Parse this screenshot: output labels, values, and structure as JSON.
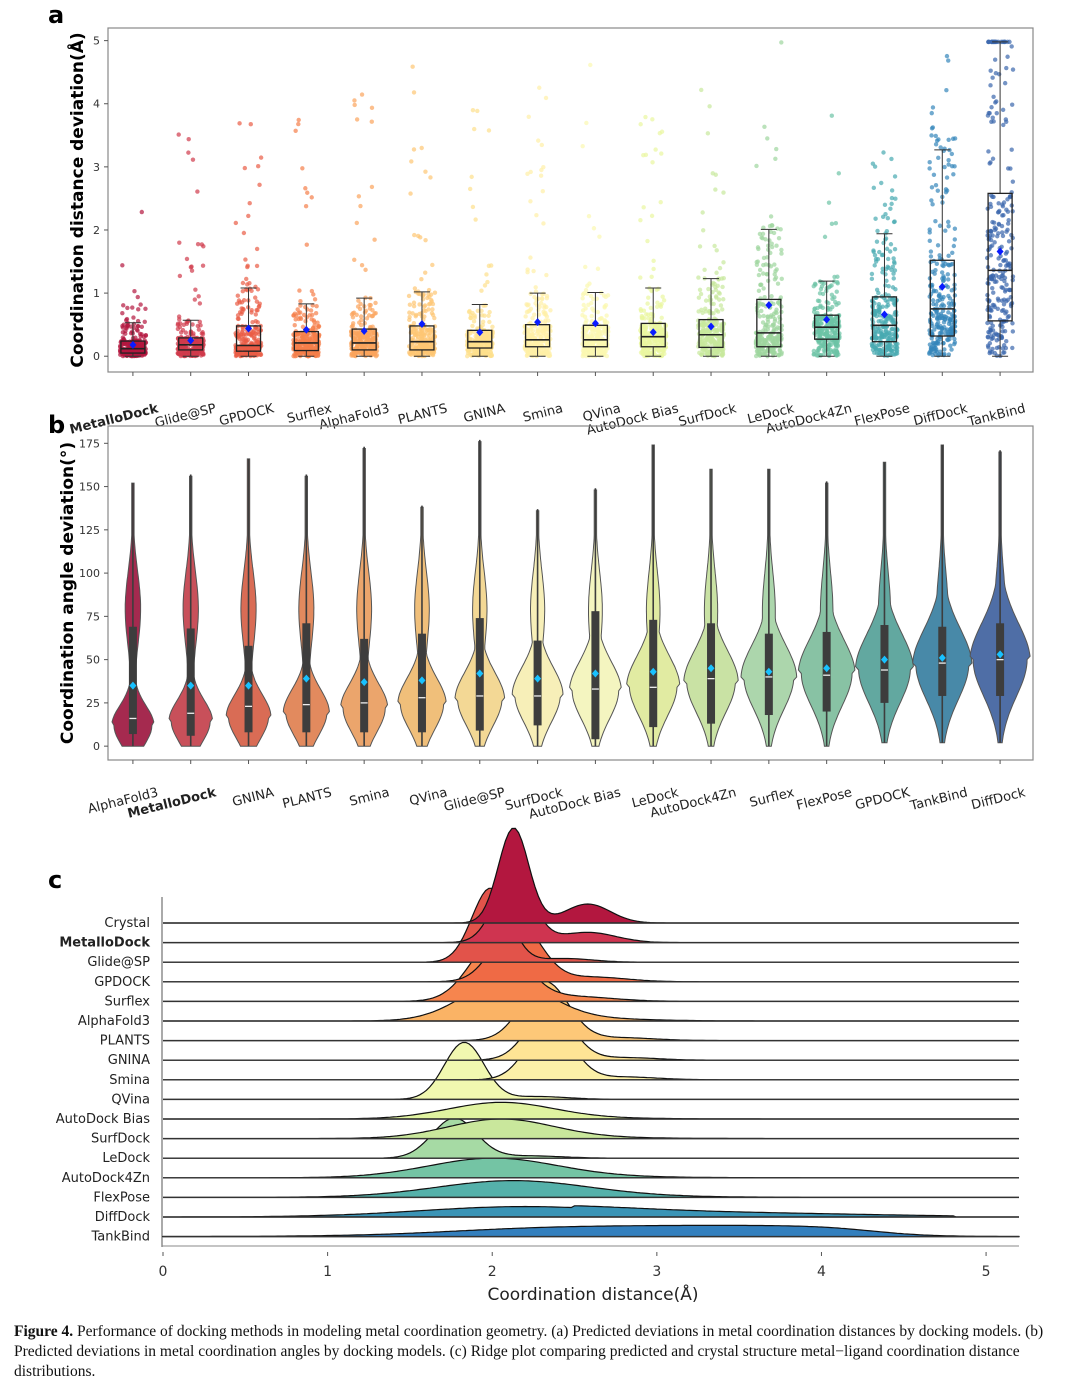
{
  "caption": {
    "label": "Figure 4.",
    "text": " Performance of docking methods in modeling metal coordination geometry. (a) Predicted deviations in metal coordination distances by docking models. (b) Predicted deviations in metal coordination angles by docking models. (c) Ridge plot comparing predicted and crystal structure metal−ligand coordination distance distributions."
  },
  "chart_data": [
    {
      "panel": "a",
      "type": "box",
      "title": "",
      "xlabel": "",
      "ylabel": "Coordination distance deviation(Å)",
      "ylim": [
        -0.25,
        5.2
      ],
      "yticks": [
        0,
        1,
        2,
        3,
        4,
        5
      ],
      "bold_category": "MetalloDock",
      "categories": [
        "MetalloDock",
        "Glide@SP",
        "GPDOCK",
        "Surflex",
        "AlphaFold3",
        "PLANTS",
        "GNINA",
        "Smina",
        "QVina",
        "AutoDock Bias",
        "SurfDock",
        "LeDock",
        "AutoDock4Zn",
        "FlexPose",
        "DiffDock",
        "TankBind"
      ],
      "colors": [
        "#b3173f",
        "#d03a4c",
        "#e95d46",
        "#f57f4a",
        "#fba45c",
        "#fdc674",
        "#fee08b",
        "#fff0a6",
        "#fbf8b0",
        "#eaf6a0",
        "#c8e89d",
        "#9ed69e",
        "#6cc3a5",
        "#47a9b0",
        "#3586bb",
        "#3b67ad"
      ],
      "series": [
        {
          "name": "MetalloDock",
          "q1": 0.05,
          "median": 0.12,
          "q3": 0.24,
          "whisker_low": 0.0,
          "whisker_high": 0.53,
          "mean": 0.18,
          "max_outlier": 2.33
        },
        {
          "name": "Glide@SP",
          "q1": 0.1,
          "median": 0.18,
          "q3": 0.29,
          "whisker_low": 0.0,
          "whisker_high": 0.57,
          "mean": 0.25,
          "max_outlier": 3.58
        },
        {
          "name": "GPDOCK",
          "q1": 0.08,
          "median": 0.17,
          "q3": 0.48,
          "whisker_low": 0.0,
          "whisker_high": 1.08,
          "mean": 0.44,
          "max_outlier": 4.18
        },
        {
          "name": "Surflex",
          "q1": 0.09,
          "median": 0.21,
          "q3": 0.39,
          "whisker_low": 0.0,
          "whisker_high": 0.83,
          "mean": 0.42,
          "max_outlier": 4.45
        },
        {
          "name": "AlphaFold3",
          "q1": 0.1,
          "median": 0.21,
          "q3": 0.43,
          "whisker_low": 0.0,
          "whisker_high": 0.92,
          "mean": 0.4,
          "max_outlier": 4.33
        },
        {
          "name": "PLANTS",
          "q1": 0.1,
          "median": 0.23,
          "q3": 0.48,
          "whisker_low": 0.0,
          "whisker_high": 1.02,
          "mean": 0.51,
          "max_outlier": 4.88
        },
        {
          "name": "GNINA",
          "q1": 0.13,
          "median": 0.23,
          "q3": 0.41,
          "whisker_low": 0.0,
          "whisker_high": 0.82,
          "mean": 0.38,
          "max_outlier": 4.18
        },
        {
          "name": "Smina",
          "q1": 0.15,
          "median": 0.26,
          "q3": 0.5,
          "whisker_low": 0.0,
          "whisker_high": 1.0,
          "mean": 0.54,
          "max_outlier": 4.65
        },
        {
          "name": "QVina",
          "q1": 0.15,
          "median": 0.26,
          "q3": 0.49,
          "whisker_low": 0.0,
          "whisker_high": 1.01,
          "mean": 0.52,
          "max_outlier": 4.92
        },
        {
          "name": "AutoDock Bias",
          "q1": 0.15,
          "median": 0.31,
          "q3": 0.52,
          "whisker_low": 0.0,
          "whisker_high": 1.08,
          "mean": 0.38,
          "max_outlier": 4.06
        },
        {
          "name": "SurfDock",
          "q1": 0.14,
          "median": 0.34,
          "q3": 0.58,
          "whisker_low": 0.0,
          "whisker_high": 1.23,
          "mean": 0.47,
          "max_outlier": 4.4
        },
        {
          "name": "LeDock",
          "q1": 0.15,
          "median": 0.37,
          "q3": 0.9,
          "whisker_low": 0.0,
          "whisker_high": 2.01,
          "mean": 0.81,
          "max_outlier": 4.98
        },
        {
          "name": "AutoDock4Zn",
          "q1": 0.27,
          "median": 0.46,
          "q3": 0.65,
          "whisker_low": 0.0,
          "whisker_high": 1.19,
          "mean": 0.58,
          "max_outlier": 4.27
        },
        {
          "name": "FlexPose",
          "q1": 0.23,
          "median": 0.49,
          "q3": 0.94,
          "whisker_low": 0.0,
          "whisker_high": 1.94,
          "mean": 0.66,
          "max_outlier": 3.24
        },
        {
          "name": "DiffDock",
          "q1": 0.32,
          "median": 0.75,
          "q3": 1.52,
          "whisker_low": 0.0,
          "whisker_high": 3.27,
          "mean": 1.1,
          "max_outlier": 4.88
        },
        {
          "name": "TankBind",
          "q1": 0.56,
          "median": 1.36,
          "q3": 2.58,
          "whisker_low": 0.0,
          "whisker_high": 4.98,
          "mean": 1.66,
          "max_outlier": 4.98
        }
      ]
    },
    {
      "panel": "b",
      "type": "violin",
      "title": "",
      "xlabel": "",
      "ylabel": "Coordination angle deviation(°)",
      "ylim": [
        -8,
        185
      ],
      "yticks": [
        0,
        25,
        50,
        75,
        100,
        125,
        150,
        175
      ],
      "bold_category": "MetalloDock",
      "categories": [
        "AlphaFold3",
        "MetalloDock",
        "GNINA",
        "PLANTS",
        "Smina",
        "QVina",
        "Glide@SP",
        "SurfDock",
        "AutoDock Bias",
        "LeDock",
        "AutoDock4Zn",
        "Surflex",
        "FlexPose",
        "GPDOCK",
        "TankBind",
        "DiffDock"
      ],
      "colors": [
        "#a52a4f",
        "#c8505a",
        "#d96c55",
        "#e28a5e",
        "#eba56c",
        "#f0bf7a",
        "#f3d895",
        "#f7efb8",
        "#f4f5c0",
        "#e1eba2",
        "#c9e2a4",
        "#acd6ac",
        "#88c2a4",
        "#62a8a0",
        "#4889a8",
        "#4f6ea6"
      ],
      "series": [
        {
          "name": "AlphaFold3",
          "min": 0,
          "q1": 7,
          "median": 16,
          "q3": 69,
          "max": 152,
          "mean": 35
        },
        {
          "name": "MetalloDock",
          "min": 0,
          "q1": 6,
          "median": 19,
          "q3": 68,
          "max": 157,
          "mean": 35
        },
        {
          "name": "GNINA",
          "min": 0,
          "q1": 8,
          "median": 23,
          "q3": 58,
          "max": 166,
          "mean": 35
        },
        {
          "name": "PLANTS",
          "min": 0,
          "q1": 8,
          "median": 24,
          "q3": 71,
          "max": 157,
          "mean": 39
        },
        {
          "name": "Smina",
          "min": 0,
          "q1": 8,
          "median": 25,
          "q3": 62,
          "max": 173,
          "mean": 37
        },
        {
          "name": "QVina",
          "min": 0,
          "q1": 8,
          "median": 28,
          "q3": 65,
          "max": 139,
          "mean": 38
        },
        {
          "name": "Glide@SP",
          "min": 0,
          "q1": 9,
          "median": 29,
          "q3": 74,
          "max": 177,
          "mean": 42
        },
        {
          "name": "SurfDock",
          "min": 0,
          "q1": 12,
          "median": 29,
          "q3": 61,
          "max": 137,
          "mean": 39
        },
        {
          "name": "AutoDock Bias",
          "min": 0,
          "q1": 4,
          "median": 33,
          "q3": 78,
          "max": 149,
          "mean": 42
        },
        {
          "name": "LeDock",
          "min": 0,
          "q1": 11,
          "median": 34,
          "q3": 73,
          "max": 174,
          "mean": 43
        },
        {
          "name": "AutoDock4Zn",
          "min": 0,
          "q1": 13,
          "median": 39,
          "q3": 71,
          "max": 160,
          "mean": 45
        },
        {
          "name": "Surflex",
          "min": 0,
          "q1": 18,
          "median": 40,
          "q3": 65,
          "max": 160,
          "mean": 43
        },
        {
          "name": "FlexPose",
          "min": 0,
          "q1": 20,
          "median": 41,
          "q3": 66,
          "max": 153,
          "mean": 45
        },
        {
          "name": "GPDOCK",
          "min": 2,
          "q1": 25,
          "median": 44,
          "q3": 70,
          "max": 164,
          "mean": 50
        },
        {
          "name": "TankBind",
          "min": 2,
          "q1": 29,
          "median": 48,
          "q3": 69,
          "max": 174,
          "mean": 51
        },
        {
          "name": "DiffDock",
          "min": 2,
          "q1": 29,
          "median": 50,
          "q3": 71,
          "max": 171,
          "mean": 53
        }
      ]
    },
    {
      "panel": "c",
      "type": "area",
      "subtype": "ridge",
      "title": "",
      "xlabel": "Coordination distance(Å)",
      "ylabel": "",
      "xlim": [
        0,
        5.2
      ],
      "xticks": [
        0,
        1,
        2,
        3,
        4,
        5
      ],
      "bold_category": "MetalloDock",
      "categories": [
        "Crystal",
        "MetalloDock",
        "Glide@SP",
        "GPDOCK",
        "Surflex",
        "AlphaFold3",
        "PLANTS",
        "GNINA",
        "Smina",
        "QVina",
        "AutoDock Bias",
        "SurfDock",
        "LeDock",
        "AutoDock4Zn",
        "FlexPose",
        "DiffDock",
        "TankBind"
      ],
      "colors": [
        "#b3173f",
        "#cf3450",
        "#e2534a",
        "#ef6a45",
        "#f6854e",
        "#fab365",
        "#fdc878",
        "#fee495",
        "#fbf0a8",
        "#f1f8b0",
        "#e0f3a0",
        "#c9e79c",
        "#a6daa4",
        "#74c4a4",
        "#55b1aa",
        "#3a94b6",
        "#337fbd"
      ],
      "series": [
        {
          "name": "Crystal",
          "peak_x": 2.13,
          "peak_height": 1.0,
          "spread": 0.13,
          "tail": 0.2
        },
        {
          "name": "MetalloDock",
          "peak_x": 2.13,
          "peak_height": 0.72,
          "spread": 0.16,
          "tail": 0.15
        },
        {
          "name": "Glide@SP",
          "peak_x": 1.99,
          "peak_height": 0.78,
          "spread": 0.16,
          "tail": 0.05
        },
        {
          "name": "GPDOCK",
          "peak_x": 2.15,
          "peak_height": 0.63,
          "spread": 0.2,
          "tail": 0.08
        },
        {
          "name": "Surflex",
          "peak_x": 2.03,
          "peak_height": 0.65,
          "spread": 0.23,
          "tail": 0.08
        },
        {
          "name": "AlphaFold3",
          "peak_x": 2.08,
          "peak_height": 0.42,
          "spread": 0.36,
          "tail": 0.06
        },
        {
          "name": "PLANTS",
          "peak_x": 2.32,
          "peak_height": 0.62,
          "spread": 0.2,
          "tail": 0.05
        },
        {
          "name": "GNINA",
          "peak_x": 2.35,
          "peak_height": 0.55,
          "spread": 0.19,
          "tail": 0.05
        },
        {
          "name": "Smina",
          "peak_x": 2.35,
          "peak_height": 0.6,
          "spread": 0.19,
          "tail": 0.05
        },
        {
          "name": "QVina",
          "peak_x": 1.83,
          "peak_height": 0.6,
          "spread": 0.17,
          "tail": 0.05
        },
        {
          "name": "AutoDock Bias",
          "peak_x": 2.05,
          "peak_height": 0.17,
          "spread": 0.45,
          "tail": 0.05
        },
        {
          "name": "SurfDock",
          "peak_x": 2.05,
          "peak_height": 0.2,
          "spread": 0.45,
          "tail": 0.05
        },
        {
          "name": "LeDock",
          "peak_x": 1.77,
          "peak_height": 0.42,
          "spread": 0.19,
          "tail": 0.06
        },
        {
          "name": "AutoDock4Zn",
          "peak_x": 2.0,
          "peak_height": 0.2,
          "spread": 0.55,
          "tail": 0.05
        },
        {
          "name": "FlexPose",
          "peak_x": 2.12,
          "peak_height": 0.17,
          "spread": 0.65,
          "tail": 0.05
        },
        {
          "name": "DiffDock",
          "peak_x": 2.2,
          "peak_height": 0.11,
          "spread": 0.9,
          "tail": 0.05
        },
        {
          "name": "TankBind",
          "peak_x": 3.0,
          "peak_height": 0.12,
          "spread": 1.1,
          "tail": 0.0
        }
      ]
    }
  ]
}
